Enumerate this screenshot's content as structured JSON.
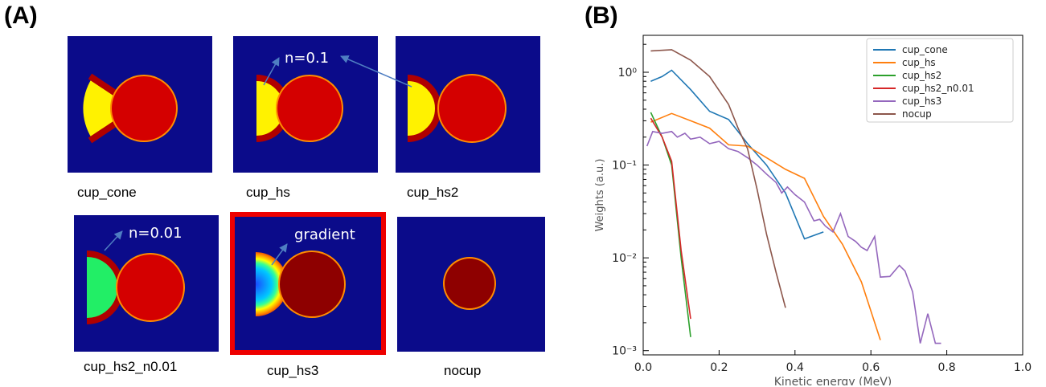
{
  "panel_a_label": "(A)",
  "panel_b_label": "(B)",
  "colors": {
    "background": "#0b0b8a",
    "plasma": "#d40000",
    "plasma_edge": "#ff8c00",
    "plasma_dark": "#8e0000",
    "cup_shell": "#b00000",
    "cup_fill_yellow": "#fff200",
    "cup_fill_green": "#22ee66",
    "highlight_frame": "#ee0000",
    "annotation_arrow": "#4f7ec2"
  },
  "simulations": [
    {
      "id": "cup_cone",
      "caption": "cup_cone"
    },
    {
      "id": "cup_hs",
      "caption": "cup_hs",
      "annotation": "n=0.1"
    },
    {
      "id": "cup_hs2",
      "caption": "cup_hs2"
    },
    {
      "id": "cup_hs2_n0.01",
      "caption": "cup_hs2_n0.01",
      "annotation": "n=0.01"
    },
    {
      "id": "cup_hs3",
      "caption": "cup_hs3",
      "annotation": "gradient",
      "highlighted": true
    },
    {
      "id": "nocup",
      "caption": "nocup"
    }
  ],
  "chart_data": {
    "type": "line",
    "xlabel": "Kinetic energy (MeV)",
    "ylabel": "Weights (a.u.)",
    "xlim": [
      0.0,
      1.0
    ],
    "ylim": [
      0.0009,
      2.5
    ],
    "yscale": "log",
    "x_ticks": [
      "0.0",
      "0.2",
      "0.4",
      "0.6",
      "0.8",
      "1.0"
    ],
    "y_ticks": [
      "10⁰",
      "10⁻¹",
      "10⁻²",
      "10⁻³"
    ],
    "legend_position": "top-right",
    "series": [
      {
        "name": "cup_cone",
        "color": "#1f77b4",
        "x": [
          0.02,
          0.05,
          0.075,
          0.125,
          0.175,
          0.225,
          0.275,
          0.325,
          0.375,
          0.425,
          0.475
        ],
        "y": [
          0.8,
          0.9,
          1.05,
          0.65,
          0.38,
          0.31,
          0.17,
          0.1,
          0.05,
          0.016,
          0.019
        ]
      },
      {
        "name": "cup_hs",
        "color": "#ff7f0e",
        "x": [
          0.02,
          0.075,
          0.125,
          0.175,
          0.225,
          0.275,
          0.325,
          0.375,
          0.425,
          0.475,
          0.525,
          0.575,
          0.625
        ],
        "y": [
          0.29,
          0.36,
          0.3,
          0.25,
          0.165,
          0.16,
          0.12,
          0.09,
          0.072,
          0.028,
          0.014,
          0.0055,
          0.0013
        ]
      },
      {
        "name": "cup_hs2",
        "color": "#2ca02c",
        "x": [
          0.02,
          0.05,
          0.075,
          0.1,
          0.125
        ],
        "y": [
          0.37,
          0.2,
          0.1,
          0.01,
          0.0014
        ]
      },
      {
        "name": "cup_hs2_n0.01",
        "color": "#d62728",
        "x": [
          0.02,
          0.05,
          0.075,
          0.1,
          0.125
        ],
        "y": [
          0.32,
          0.2,
          0.11,
          0.012,
          0.0022
        ]
      },
      {
        "name": "cup_hs3",
        "color": "#9467bd",
        "x": [
          0.01,
          0.025,
          0.05,
          0.075,
          0.09,
          0.11,
          0.125,
          0.15,
          0.175,
          0.2,
          0.225,
          0.25,
          0.275,
          0.3,
          0.325,
          0.35,
          0.365,
          0.38,
          0.4,
          0.425,
          0.45,
          0.465,
          0.48,
          0.5,
          0.52,
          0.54,
          0.56,
          0.575,
          0.59,
          0.61,
          0.625,
          0.65,
          0.675,
          0.69,
          0.71,
          0.73,
          0.75,
          0.77,
          0.785
        ],
        "y": [
          0.16,
          0.23,
          0.22,
          0.23,
          0.2,
          0.22,
          0.19,
          0.2,
          0.17,
          0.18,
          0.15,
          0.14,
          0.12,
          0.1,
          0.08,
          0.065,
          0.05,
          0.058,
          0.048,
          0.04,
          0.025,
          0.026,
          0.022,
          0.019,
          0.03,
          0.017,
          0.015,
          0.013,
          0.012,
          0.017,
          0.0062,
          0.0063,
          0.0083,
          0.0072,
          0.0043,
          0.0012,
          0.0025,
          0.0012,
          0.0012
        ]
      },
      {
        "name": "nocup",
        "color": "#8c564b",
        "x": [
          0.02,
          0.075,
          0.125,
          0.175,
          0.225,
          0.25,
          0.275,
          0.3,
          0.325,
          0.35,
          0.375
        ],
        "y": [
          1.7,
          1.75,
          1.35,
          0.9,
          0.45,
          0.25,
          0.15,
          0.055,
          0.018,
          0.007,
          0.0029
        ]
      }
    ]
  }
}
